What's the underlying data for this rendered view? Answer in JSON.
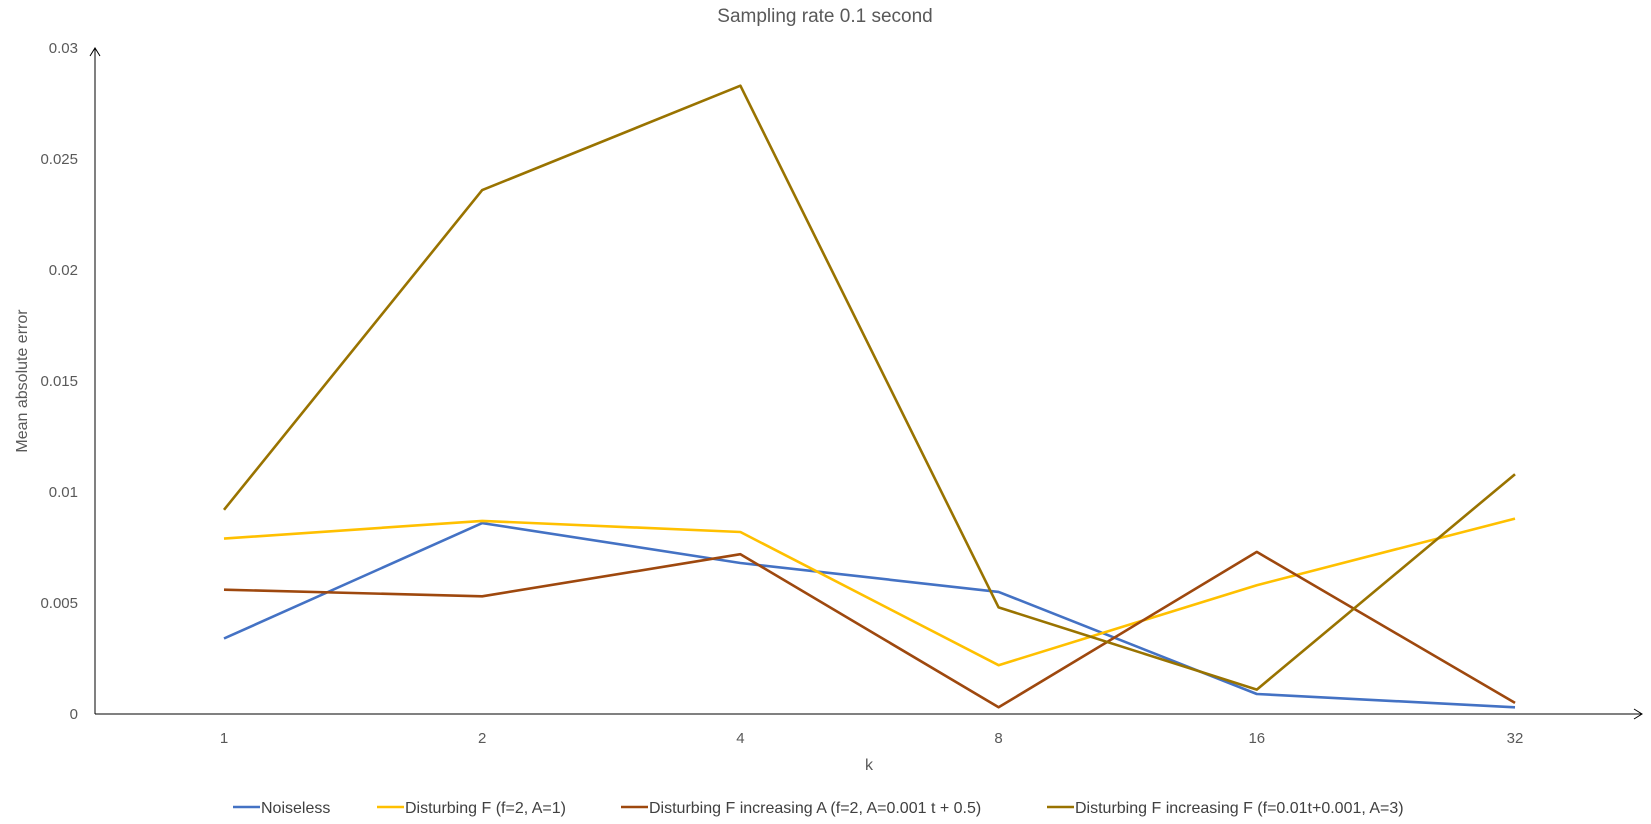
{
  "chart_data": {
    "type": "line",
    "title": "Sampling rate 0.1 second",
    "xlabel": "k",
    "ylabel": "Mean absolute error",
    "categories": [
      "1",
      "2",
      "4",
      "8",
      "16",
      "32"
    ],
    "ylim": [
      0,
      0.03
    ],
    "yticks": [
      "0",
      "0.005",
      "0.01",
      "0.015",
      "0.02",
      "0.025",
      "0.03"
    ],
    "grid": false,
    "legend_position": "bottom",
    "series": [
      {
        "name": "Noiseless",
        "color": "#4472C4",
        "values": [
          0.0034,
          0.0086,
          0.0068,
          0.0055,
          0.0009,
          0.0003
        ]
      },
      {
        "name": "Disturbing F (f=2, A=1)",
        "color": "#FFC000",
        "values": [
          0.0079,
          0.0087,
          0.0082,
          0.0022,
          0.0058,
          0.0088
        ]
      },
      {
        "name": "Disturbing F increasing A (f=2, A=0.001 t + 0.5)",
        "color": "#9E480E",
        "values": [
          0.0056,
          0.0053,
          0.0072,
          0.0003,
          0.0073,
          0.0005
        ]
      },
      {
        "name": "Disturbing F increasing F (f=0.01t+0.001, A=3)",
        "color": "#997300",
        "values": [
          0.0092,
          0.0236,
          0.0283,
          0.0048,
          0.0011,
          0.0108
        ]
      }
    ]
  }
}
